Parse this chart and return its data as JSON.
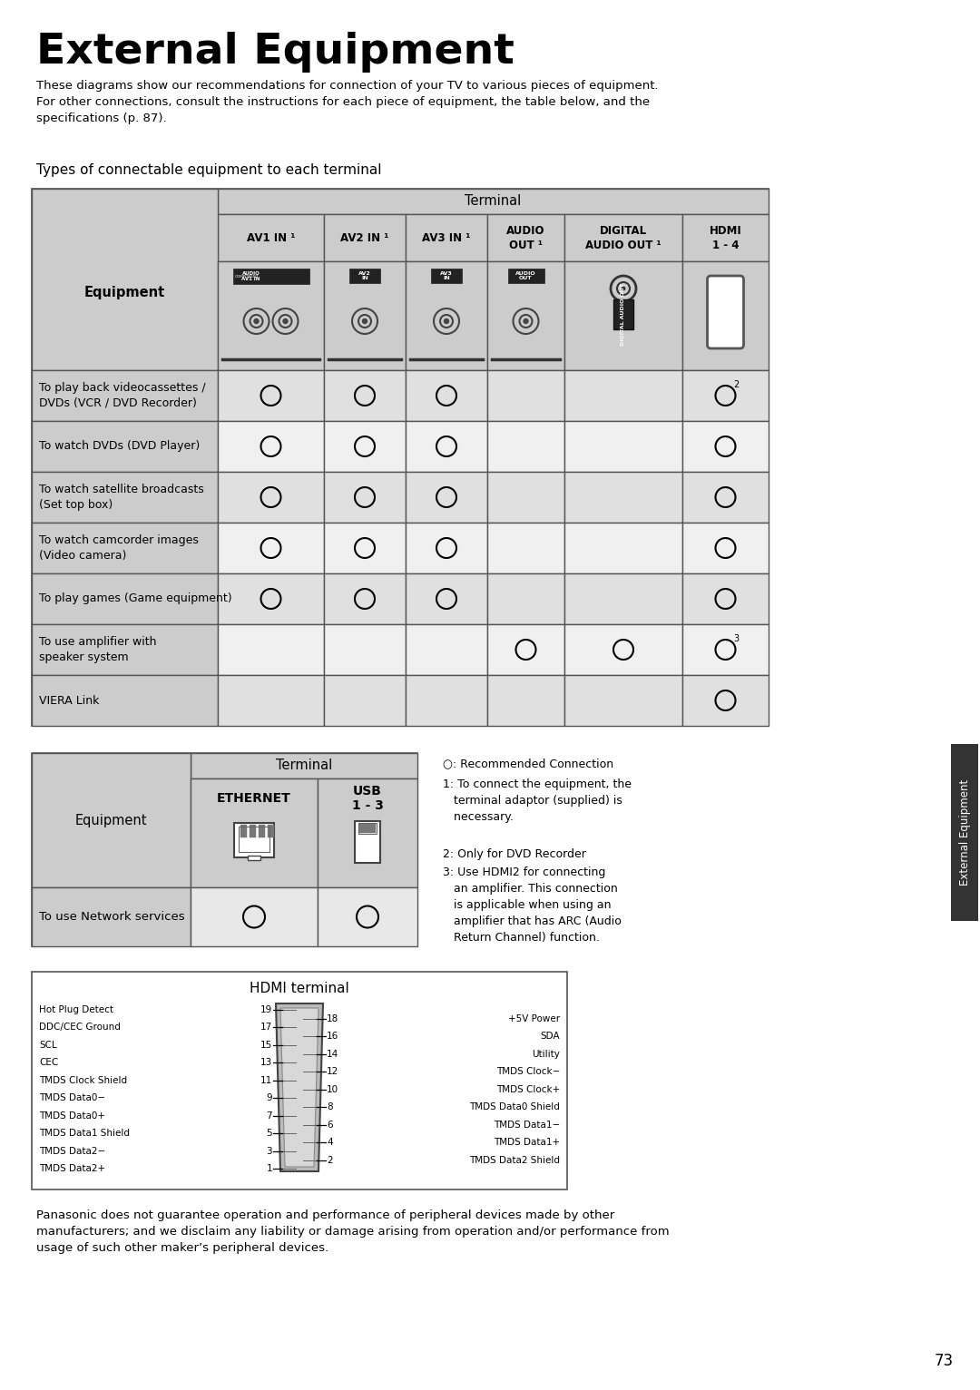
{
  "title": "External Equipment",
  "subtitle": "These diagrams show our recommendations for connection of your TV to various pieces of equipment.\nFor other connections, consult the instructions for each piece of equipment, the table below, and the\nspecifications (p. 87).",
  "section_title": "Types of connectable equipment to each terminal",
  "table1_col_headers": [
    "AV1 IN ¹",
    "AV2 IN ¹",
    "AV3 IN ¹",
    "AUDIO\nOUT ¹",
    "DIGITAL\nAUDIO OUT ¹",
    "HDMI\n1 - 4"
  ],
  "table1_rows": [
    [
      "To play back videocassettes /\nDVDs (VCR / DVD Recorder)",
      true,
      true,
      true,
      false,
      false,
      "2"
    ],
    [
      "To watch DVDs (DVD Player)",
      true,
      true,
      true,
      false,
      false,
      true
    ],
    [
      "To watch satellite broadcasts\n(Set top box)",
      true,
      true,
      true,
      false,
      false,
      true
    ],
    [
      "To watch camcorder images\n(Video camera)",
      true,
      true,
      true,
      false,
      false,
      true
    ],
    [
      "To play games (Game equipment)",
      true,
      true,
      true,
      false,
      false,
      true
    ],
    [
      "To use amplifier with\nspeaker system",
      false,
      false,
      false,
      true,
      true,
      "3"
    ],
    [
      "VIERA Link",
      false,
      false,
      false,
      false,
      false,
      true
    ]
  ],
  "table2_col_headers": [
    "ETHERNET",
    "USB\n1 - 3"
  ],
  "table2_rows": [
    [
      "To use Network services",
      true,
      true
    ]
  ],
  "notes_line0": "○: Recommended Connection",
  "notes_line1": "1: To connect the equipment, the\n   terminal adaptor (supplied) is\n   necessary.",
  "notes_line2": "2: Only for DVD Recorder",
  "notes_line3": "3: Use HDMI2 for connecting\n   an amplifier. This connection\n   is applicable when using an\n   amplifier that has ARC (Audio\n   Return Channel) function.",
  "hdmi_title": "HDMI terminal",
  "hdmi_left": [
    [
      "Hot Plug Detect",
      "19"
    ],
    [
      "DDC/CEC Ground",
      "17"
    ],
    [
      "SCL",
      "15"
    ],
    [
      "CEC",
      "13"
    ],
    [
      "TMDS Clock Shield",
      "11"
    ],
    [
      "TMDS Data0−",
      "9"
    ],
    [
      "TMDS Data0+",
      "7"
    ],
    [
      "TMDS Data1 Shield",
      "5"
    ],
    [
      "TMDS Data2−",
      "3"
    ],
    [
      "TMDS Data2+",
      "1"
    ]
  ],
  "hdmi_right": [
    [
      "18",
      "+5V Power"
    ],
    [
      "16",
      "SDA"
    ],
    [
      "14",
      "Utility"
    ],
    [
      "12",
      "TMDS Clock−"
    ],
    [
      "10",
      "TMDS Clock+"
    ],
    [
      "8",
      "TMDS Data0 Shield"
    ],
    [
      "6",
      "TMDS Data1−"
    ],
    [
      "4",
      "TMDS Data1+"
    ],
    [
      "2",
      "TMDS Data2 Shield"
    ]
  ],
  "footer_text": "Panasonic does not guarantee operation and performance of peripheral devices made by other\nmanufacturers; and we disclaim any liability or damage arising from operation and/or performance from\nusage of such other maker’s peripheral devices.",
  "page_number": "73",
  "side_label": "External Equipment",
  "bg_color": "#ffffff",
  "table_bg": "#cccccc",
  "cell_bg_alt": "#e0e0e0",
  "cell_bg_white": "#f0f0f0",
  "border_color": "#555555"
}
